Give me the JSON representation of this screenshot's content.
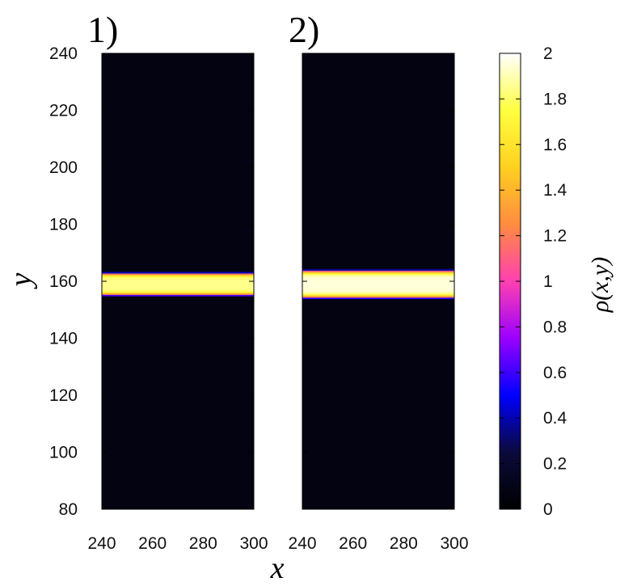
{
  "chart_data": {
    "type": "heatmap",
    "title": "",
    "colormap": "gnuplot-like (black-blue-purple-red-orange-yellow-white)",
    "colormap_stops": [
      "#000000",
      "#0b0a3c",
      "#0000ff",
      "#9a00ff",
      "#ff40b0",
      "#ff8c40",
      "#ffd020",
      "#ffff40",
      "#ffffff"
    ],
    "background_value": 0.07,
    "xlabel": "x",
    "ylabel": "y",
    "colorbar_label": "ρ(x,y)",
    "colorbar_range": [
      0,
      2
    ],
    "colorbar_ticks": [
      "0",
      "0.2",
      "0.4",
      "0.6",
      "0.8",
      "1",
      "1.2",
      "1.4",
      "1.6",
      "1.8",
      "2"
    ],
    "y_ticks": [
      "80",
      "100",
      "120",
      "140",
      "160",
      "180",
      "200",
      "220",
      "240"
    ],
    "panels": [
      {
        "label": "1)",
        "xlim": [
          240,
          300
        ],
        "ylim": [
          80,
          240
        ],
        "x_ticks": [
          "240",
          "260",
          "280",
          "300"
        ],
        "band": {
          "y_center": 159,
          "half_width": 4.2,
          "peak": 1.85
        }
      },
      {
        "label": "2)",
        "xlim": [
          240,
          300
        ],
        "ylim": [
          80,
          240
        ],
        "x_ticks": [
          "240",
          "260",
          "280",
          "300"
        ],
        "band": {
          "y_center": 159,
          "half_width": 5.2,
          "peak": 1.95
        }
      }
    ]
  }
}
